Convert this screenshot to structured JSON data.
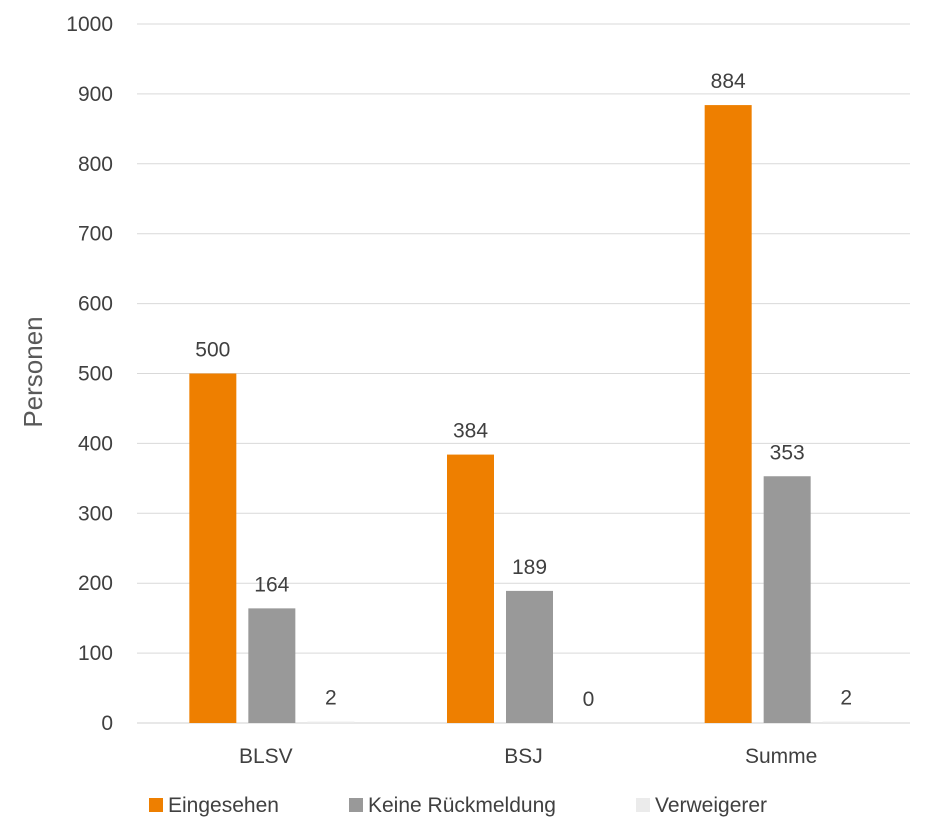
{
  "chart_data": {
    "type": "bar",
    "title": "",
    "xlabel": "",
    "ylabel": "Personen",
    "ylim": [
      0,
      1000
    ],
    "yticks": [
      0,
      100,
      200,
      300,
      400,
      500,
      600,
      700,
      800,
      900,
      1000
    ],
    "grid": true,
    "legend_position": "bottom",
    "categories": [
      "BLSV",
      "BSJ",
      "Summe"
    ],
    "series": [
      {
        "name": "Eingesehen",
        "values": [
          500,
          384,
          884
        ],
        "color": "#EE7F00"
      },
      {
        "name": "Keine Rückmeldung",
        "values": [
          164,
          189,
          353
        ],
        "color": "#999999"
      },
      {
        "name": "Verweigerer",
        "values": [
          2,
          0,
          2
        ],
        "color": "#EBEBEB"
      }
    ]
  }
}
